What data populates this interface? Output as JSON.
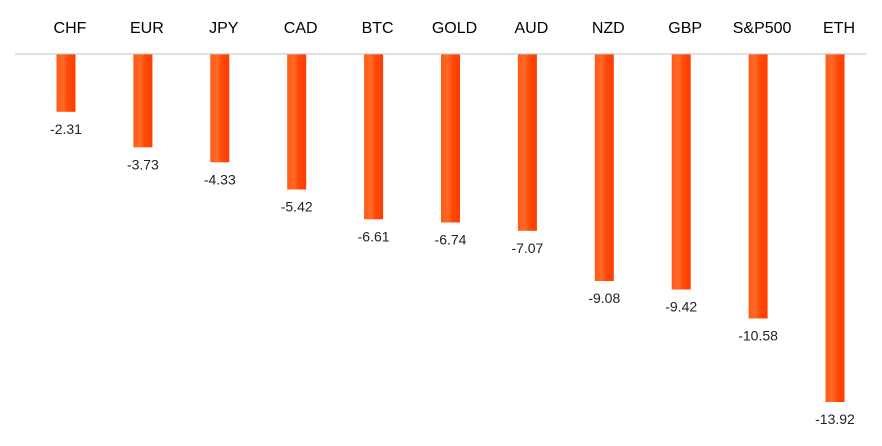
{
  "chart_data": {
    "type": "bar",
    "title": "",
    "xlabel": "",
    "ylabel": "",
    "categories": [
      "CHF",
      "EUR",
      "JPY",
      "CAD",
      "BTC",
      "GOLD",
      "AUD",
      "NZD",
      "GBP",
      "S&P500",
      "ETH"
    ],
    "values": [
      -2.31,
      -3.73,
      -4.33,
      -5.42,
      -6.61,
      -6.74,
      -7.07,
      -9.08,
      -9.42,
      -10.58,
      -13.92
    ],
    "value_labels": [
      "-2.31",
      "-3.73",
      "-4.33",
      "-5.42",
      "-6.61",
      "-6.74",
      "-7.07",
      "-9.08",
      "-9.42",
      "-10.58",
      "-13.92"
    ],
    "ylim": [
      -14,
      0
    ],
    "grid": false,
    "legend": "none",
    "bar_color": "#ff4000",
    "bar_color_highlight": "#ff7a3c",
    "axis_color": "#c0c0c0"
  }
}
